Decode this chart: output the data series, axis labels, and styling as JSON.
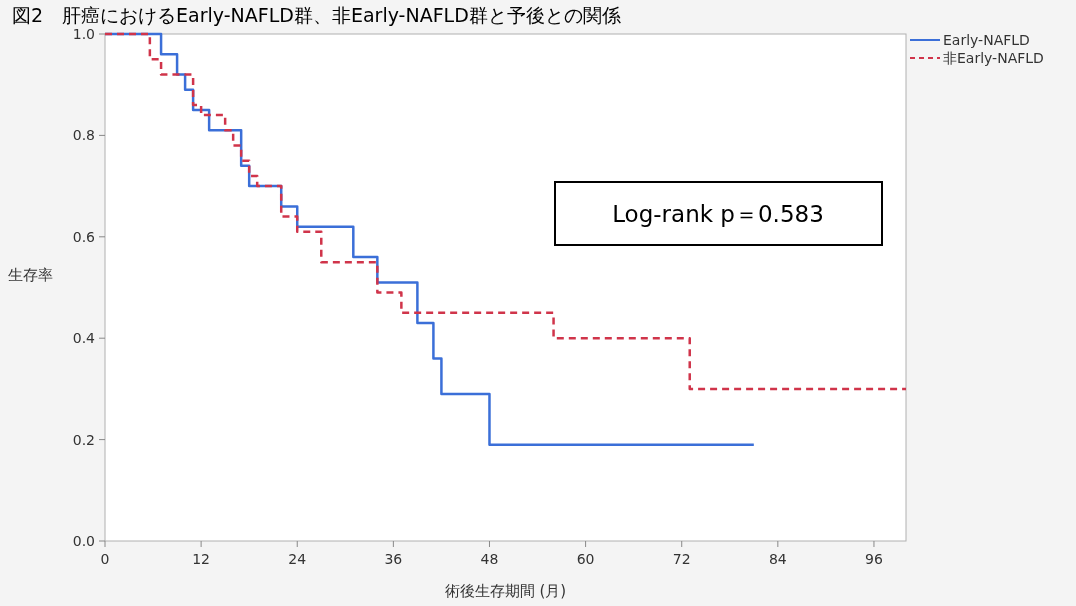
{
  "chart_data": {
    "type": "step",
    "title": "図2　肝癌におけるEarly-NAFLD群、非Early-NAFLD群と予後との関係",
    "xlabel": "術後生存期間 (月)",
    "ylabel": "生存率",
    "annotations": [
      "Log-rank p＝0.583"
    ],
    "series": [
      {
        "name": "Early-NAFLD",
        "color": "#3b6fd8",
        "line_style": "solid",
        "x": [
          0,
          7,
          9,
          10,
          11,
          13,
          17,
          18,
          22,
          24,
          31,
          34,
          39,
          41,
          42,
          48,
          81
        ],
        "values": [
          1,
          0.96,
          0.92,
          0.89,
          0.85,
          0.81,
          0.74,
          0.7,
          0.66,
          0.62,
          0.56,
          0.51,
          0.43,
          0.36,
          0.29,
          0.19,
          0.19
        ]
      },
      {
        "name": "非Early-NAFLD",
        "color": "#d0344a",
        "line_style": "dashed",
        "x": [
          0,
          5.6,
          7,
          11,
          12,
          15,
          16,
          17,
          18,
          19,
          22,
          24,
          27,
          34,
          37,
          56,
          73,
          100
        ],
        "values": [
          1,
          0.95,
          0.92,
          0.86,
          0.84,
          0.81,
          0.78,
          0.75,
          0.72,
          0.7,
          0.64,
          0.61,
          0.55,
          0.49,
          0.45,
          0.4,
          0.3,
          0.3
        ]
      }
    ],
    "xlim": [
      0,
      100
    ],
    "ylim": [
      0,
      1
    ],
    "xticks": [
      0,
      12,
      24,
      36,
      48,
      60,
      72,
      84,
      96
    ],
    "yticks": [
      {
        "value": 0,
        "label": "0.0"
      },
      {
        "value": 0.2,
        "label": "0.2"
      },
      {
        "value": 0.4,
        "label": "0.4"
      },
      {
        "value": 0.6,
        "label": "0.6"
      },
      {
        "value": 0.8,
        "label": "0.8"
      },
      {
        "value": 1,
        "label": "1.0"
      }
    ],
    "legend": "top right"
  }
}
